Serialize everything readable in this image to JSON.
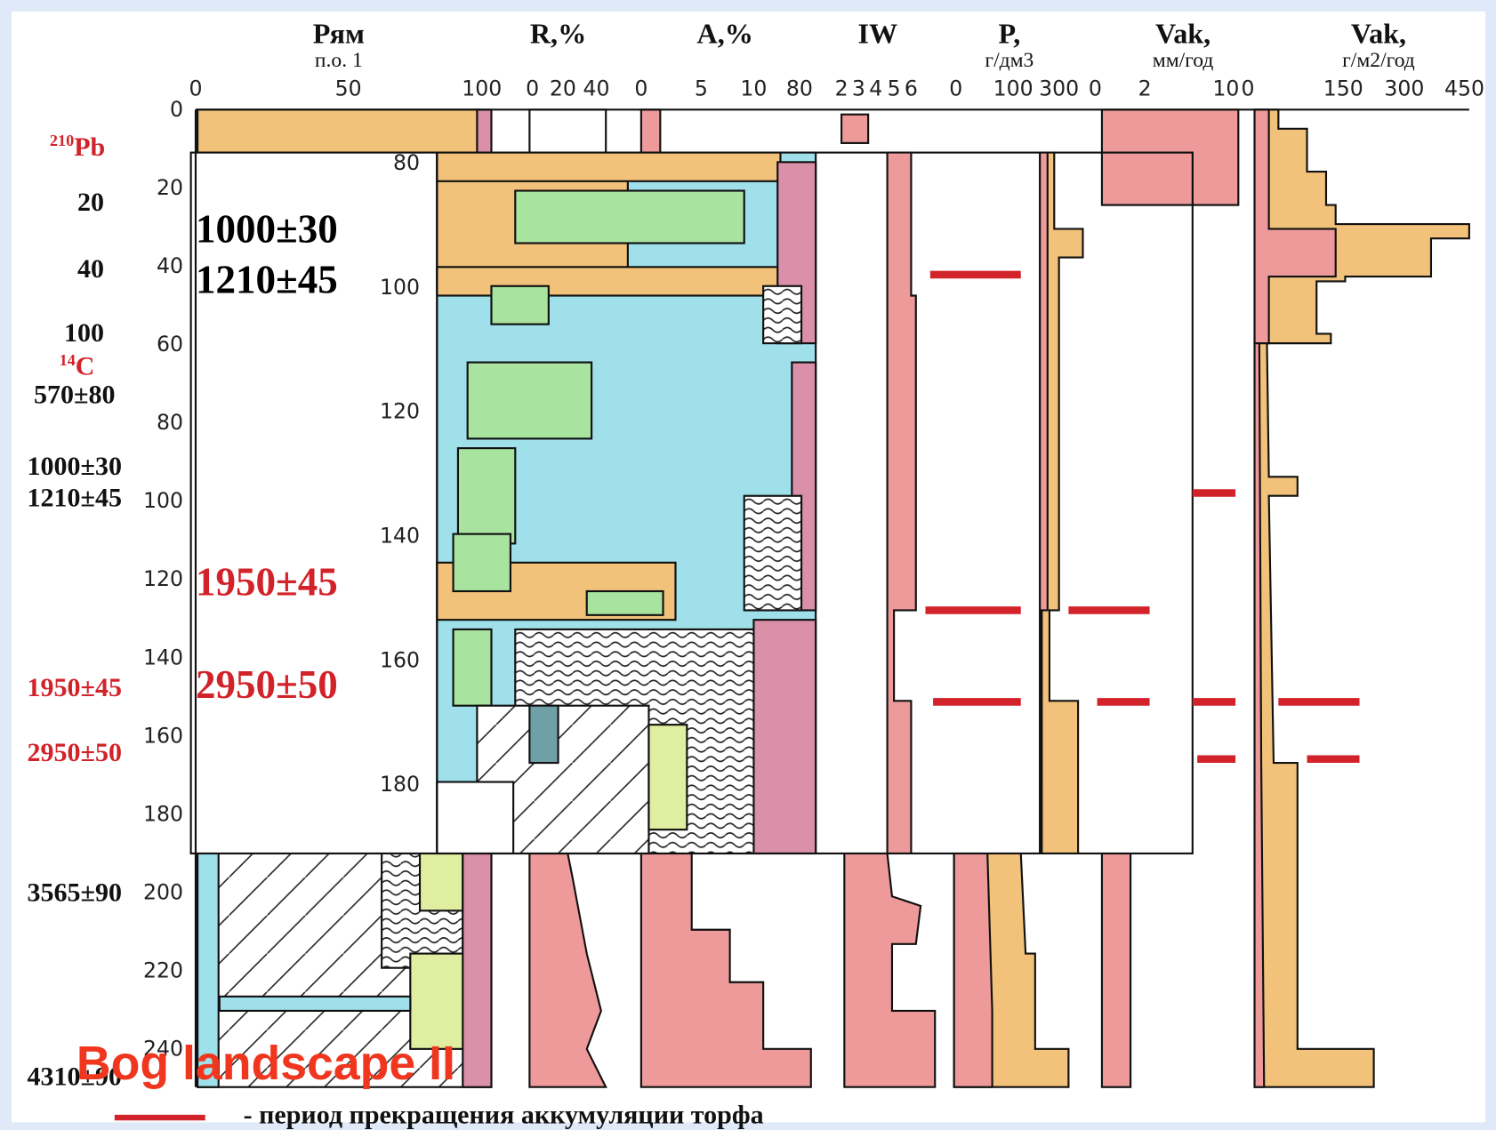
{
  "header": {
    "columns": [
      {
        "title": [
          "Рям",
          "п.о. 1"
        ],
        "ticks": [
          "0",
          "50",
          "100"
        ]
      },
      {
        "title": [
          "R,%"
        ],
        "ticks": [
          "0",
          "20",
          "40"
        ]
      },
      {
        "title": [
          "A,%"
        ],
        "ticks": [
          "0",
          "5",
          "10",
          "80"
        ]
      },
      {
        "title": [
          "IW"
        ],
        "ticks": [
          "2",
          "3",
          "4",
          "5",
          "6"
        ]
      },
      {
        "title": [
          "P,",
          "г/дм3"
        ],
        "ticks": [
          "0",
          "100",
          "300"
        ]
      },
      {
        "title": [
          "Vak,",
          "мм/год"
        ],
        "ticks": [
          "0",
          "2",
          "10"
        ]
      },
      {
        "title": [
          "Vak,",
          "г/м2/год"
        ],
        "ticks": [
          "0",
          "150",
          "300",
          "450"
        ]
      }
    ]
  },
  "depth_axis": {
    "ticks": [
      "0",
      "20",
      "40",
      "60",
      "80",
      "100",
      "120",
      "140",
      "160",
      "180",
      "200",
      "220",
      "240"
    ]
  },
  "inset_axis": {
    "ticks": [
      "80",
      "100",
      "120",
      "140",
      "160",
      "180"
    ]
  },
  "dating": {
    "pb_label": {
      "sup": "210",
      "text": "Pb"
    },
    "c_label": {
      "sup": "14",
      "text": "C"
    },
    "ages": [
      "20",
      "40",
      "100",
      "570±80",
      "1000±30",
      "1210±45",
      "1950±45",
      "2950±50",
      "3565±90",
      "4310±90"
    ]
  },
  "inset_dates": [
    "1000±30",
    "1210±45",
    "1950±45",
    "2950±50"
  ],
  "title": "Bog landscape II",
  "legend": "- период прекращения аккумуляции торфа"
}
